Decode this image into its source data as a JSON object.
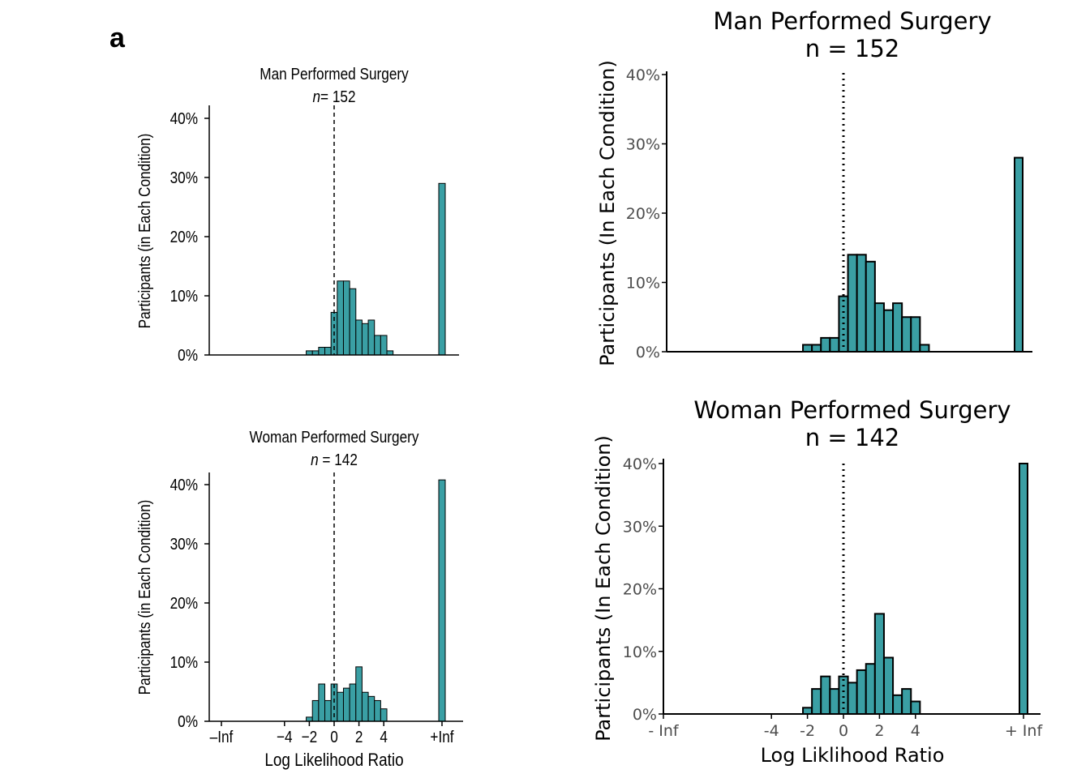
{
  "panel_label": "a",
  "chart_data": [
    {
      "type": "bar",
      "title": "Man Performed Surgery",
      "subtitle_prefix": "n",
      "subtitle_value": "= 152",
      "xlabel": "",
      "ylabel": "Participants (in Each Condition)",
      "ylim": [
        0,
        40
      ],
      "ytick_labels": [
        "0%",
        "10%",
        "20%",
        "30%",
        "40%"
      ],
      "xtick_labels": [],
      "reference_line": {
        "x": 0,
        "style": "dashed"
      },
      "bar_width": 0.5,
      "bars": [
        {
          "x": -2.0,
          "value": 0.7
        },
        {
          "x": -1.5,
          "value": 0.7
        },
        {
          "x": -1.0,
          "value": 1.3
        },
        {
          "x": -0.5,
          "value": 1.3
        },
        {
          "x": 0.0,
          "value": 7.2
        },
        {
          "x": 0.5,
          "value": 12.5
        },
        {
          "x": 1.0,
          "value": 12.5
        },
        {
          "x": 1.5,
          "value": 11.2
        },
        {
          "x": 2.0,
          "value": 5.9
        },
        {
          "x": 2.5,
          "value": 5.3
        },
        {
          "x": 3.0,
          "value": 5.9
        },
        {
          "x": 3.5,
          "value": 3.3
        },
        {
          "x": 4.0,
          "value": 3.3
        },
        {
          "x": 4.5,
          "value": 0.7
        }
      ],
      "inf_bars": [
        {
          "x": "+Inf",
          "value": 29.0
        }
      ],
      "x_range": [
        -8.2,
        8.8
      ]
    },
    {
      "type": "bar",
      "title": "Woman Performed Surgery",
      "subtitle_prefix": "n",
      "subtitle_value": " = 142",
      "xlabel": "Log Likelihood Ratio",
      "ylabel": "Participants (in Each Condition)",
      "ylim": [
        0,
        40
      ],
      "ytick_labels": [
        "0%",
        "10%",
        "20%",
        "30%",
        "40%"
      ],
      "xtick_labels": [
        "–Inf",
        "−4",
        "−2",
        "0",
        "2",
        "4",
        "+Inf"
      ],
      "reference_line": {
        "x": 0,
        "style": "dashed"
      },
      "bar_width": 0.5,
      "bars": [
        {
          "x": -2.0,
          "value": 0.7
        },
        {
          "x": -1.5,
          "value": 3.5
        },
        {
          "x": -1.0,
          "value": 6.3
        },
        {
          "x": -0.5,
          "value": 3.5
        },
        {
          "x": 0.0,
          "value": 6.3
        },
        {
          "x": 0.5,
          "value": 4.9
        },
        {
          "x": 1.0,
          "value": 5.6
        },
        {
          "x": 1.5,
          "value": 6.3
        },
        {
          "x": 2.0,
          "value": 9.2
        },
        {
          "x": 2.5,
          "value": 4.9
        },
        {
          "x": 3.0,
          "value": 4.2
        },
        {
          "x": 3.5,
          "value": 3.5
        },
        {
          "x": 4.0,
          "value": 2.1
        }
      ],
      "inf_bars": [
        {
          "x": "+Inf",
          "value": 40.8
        }
      ],
      "x_range": [
        -8.2,
        8.8
      ]
    },
    {
      "type": "bar",
      "title": "Man Performed Surgery",
      "subtitle": "n = 152",
      "xlabel": "",
      "ylabel": "Participants (In Each Condition)",
      "ylim": [
        0,
        40
      ],
      "ytick_labels": [
        "0%",
        "10%",
        "20%",
        "30%",
        "40%"
      ],
      "xtick_labels": [],
      "reference_line": {
        "x": 0,
        "style": "dotted"
      },
      "bar_width": 0.5,
      "bars": [
        {
          "x": -2.0,
          "value": 1.0
        },
        {
          "x": -1.5,
          "value": 1.0
        },
        {
          "x": -1.0,
          "value": 2.0
        },
        {
          "x": -0.5,
          "value": 2.0
        },
        {
          "x": 0.0,
          "value": 8.0
        },
        {
          "x": 0.5,
          "value": 14.0
        },
        {
          "x": 1.0,
          "value": 14.0
        },
        {
          "x": 1.5,
          "value": 13.0
        },
        {
          "x": 2.0,
          "value": 7.0
        },
        {
          "x": 2.5,
          "value": 6.0
        },
        {
          "x": 3.0,
          "value": 7.0
        },
        {
          "x": 3.5,
          "value": 5.0
        },
        {
          "x": 4.0,
          "value": 5.0
        },
        {
          "x": 4.5,
          "value": 1.0
        }
      ],
      "inf_bars": [
        {
          "x": "+ Inf",
          "value": 28.0
        }
      ],
      "x_range": [
        -10.0,
        10.8
      ]
    },
    {
      "type": "bar",
      "title": "Woman Performed Surgery",
      "subtitle": "n = 142",
      "xlabel": "Log Liklihood Ratio",
      "ylabel": "Participants (In Each Condition)",
      "ylim": [
        0,
        40
      ],
      "ytick_labels": [
        "0%",
        "10%",
        "20%",
        "30%",
        "40%"
      ],
      "xtick_labels": [
        "- Inf",
        "-4",
        "-2",
        "0",
        "2",
        "4",
        "+ Inf"
      ],
      "reference_line": {
        "x": 0,
        "style": "dotted"
      },
      "bar_width": 0.5,
      "bars": [
        {
          "x": -2.0,
          "value": 1.0
        },
        {
          "x": -1.5,
          "value": 4.0
        },
        {
          "x": -1.0,
          "value": 6.0
        },
        {
          "x": -0.5,
          "value": 4.0
        },
        {
          "x": 0.0,
          "value": 6.0
        },
        {
          "x": 0.5,
          "value": 5.0
        },
        {
          "x": 1.0,
          "value": 7.0
        },
        {
          "x": 1.5,
          "value": 8.0
        },
        {
          "x": 2.0,
          "value": 16.0
        },
        {
          "x": 2.5,
          "value": 9.0
        },
        {
          "x": 3.0,
          "value": 3.0
        },
        {
          "x": 3.5,
          "value": 4.0
        },
        {
          "x": 4.0,
          "value": 2.0
        }
      ],
      "inf_bars": [
        {
          "x": "+ Inf",
          "value": 40.0
        }
      ],
      "x_range": [
        -10.0,
        10.8
      ]
    }
  ],
  "colors": {
    "bar_fill": "#3a9fa4",
    "bar_stroke": "#000000",
    "axis": "#000000",
    "text": "#000000",
    "tick_text_right": "#4d4d4d"
  }
}
